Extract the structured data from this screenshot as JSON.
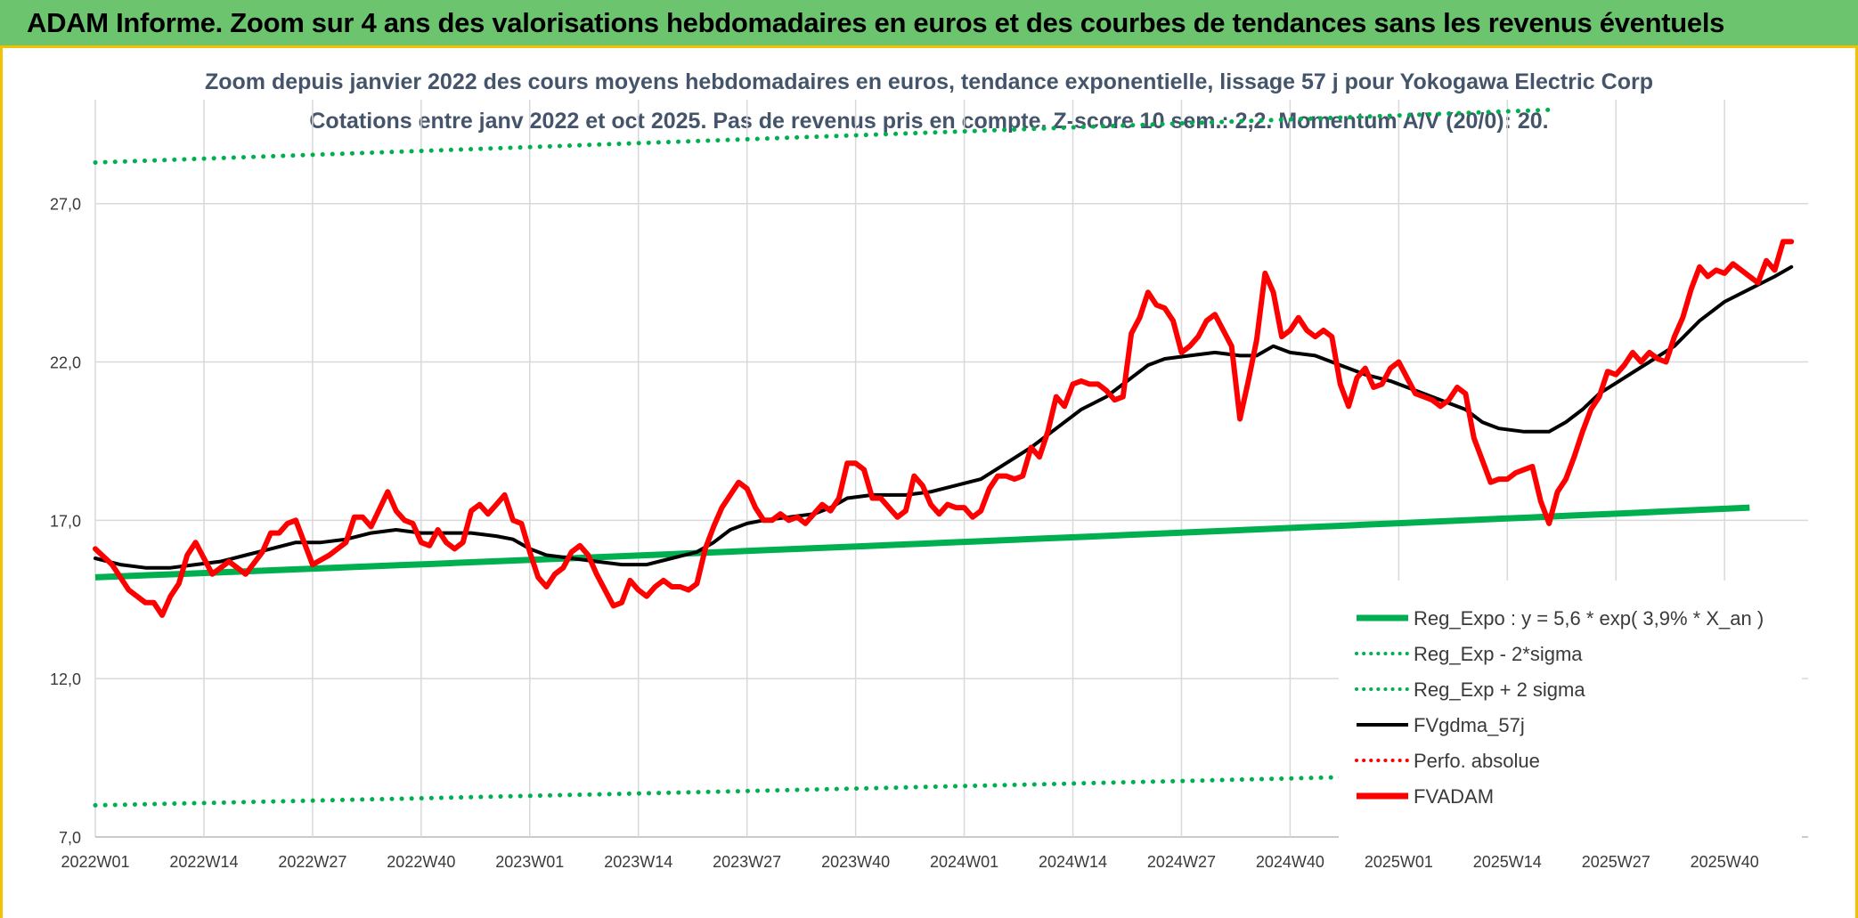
{
  "header": {
    "banner": "ADAM Informe. Zoom sur 4 ans des valorisations hebdomadaires en euros et des courbes de tendances sans les revenus éventuels"
  },
  "colors": {
    "banner_bg": "#6cc46f",
    "frame_border": "#f2c200",
    "reg_expo": "#00b050",
    "fvgdma": "#000000",
    "fvadam": "#ff0000",
    "perfo_absolue": "#ff0000",
    "grid": "#d9d9d9",
    "title": "#44546a"
  },
  "chart_data": {
    "type": "line",
    "title": "Zoom depuis janvier 2022 des cours moyens hebdomadaires en euros, tendance exponentielle, lissage 57 j pour Yokogawa Electric Corp",
    "subtitle": "Cotations entre janv 2022 et oct 2025. Pas de revenus pris en compte. Z-score 10 sem.: 2,2. Momentum A/V (20/0): 20.",
    "xlabel": "",
    "ylabel": "",
    "x_ticks": [
      "2022W01",
      "2022W14",
      "2022W27",
      "2022W40",
      "2023W01",
      "2023W14",
      "2023W27",
      "2023W40",
      "2024W01",
      "2024W14",
      "2024W27",
      "2024W40",
      "2025W01",
      "2025W14",
      "2025W27",
      "2025W40"
    ],
    "y_ticks": [
      "7,0",
      "12,0",
      "17,0",
      "22,0",
      "27,0"
    ],
    "ylim": [
      7,
      30
    ],
    "grid": true,
    "legend_position": "bottom-right",
    "legend": [
      {
        "name": "Reg_Expo : y = 5,6 * exp( 3,9% *  X_an )",
        "style": "solid-thick",
        "color": "#00b050"
      },
      {
        "name": "Reg_Exp - 2*sigma",
        "style": "dotted",
        "color": "#00b050"
      },
      {
        "name": "Reg_Exp + 2 sigma",
        "style": "dotted",
        "color": "#00b050"
      },
      {
        "name": "FVgdma_57j",
        "style": "solid",
        "color": "#000000"
      },
      {
        "name": "Perfo. absolue",
        "style": "dotted",
        "color": "#ff0000"
      },
      {
        "name": "FVADAM",
        "style": "solid-thick",
        "color": "#ff0000"
      }
    ],
    "series": [
      {
        "name": "Reg_Expo : y = 5,6 * exp( 3,9% *  X_an )",
        "x_start": "2022W01",
        "x_end": "2025W43",
        "y_start": 15.2,
        "y_end": 17.4
      },
      {
        "name": "Reg_Exp - 2*sigma",
        "x_start": "2022W01",
        "x_end": "2025W43",
        "y_start": 8.0,
        "y_end": 9.2
      },
      {
        "name": "Reg_Exp + 2 sigma",
        "x_start": "2022W01",
        "x_end": "2025W43",
        "y_start": 28.3,
        "y_end": 30.2
      },
      {
        "name": "FVADAM",
        "points": [
          [
            0,
            16.1
          ],
          [
            2,
            15.6
          ],
          [
            4,
            14.8
          ],
          [
            6,
            14.4
          ],
          [
            7,
            14.4
          ],
          [
            8,
            14.0
          ],
          [
            9,
            14.6
          ],
          [
            10,
            15.0
          ],
          [
            11,
            15.9
          ],
          [
            12,
            16.3
          ],
          [
            14,
            15.3
          ],
          [
            16,
            15.7
          ],
          [
            18,
            15.3
          ],
          [
            20,
            16.0
          ],
          [
            21,
            16.6
          ],
          [
            22,
            16.6
          ],
          [
            23,
            16.9
          ],
          [
            24,
            17.0
          ],
          [
            25,
            16.3
          ],
          [
            26,
            15.6
          ],
          [
            28,
            15.9
          ],
          [
            30,
            16.3
          ],
          [
            31,
            17.1
          ],
          [
            32,
            17.1
          ],
          [
            33,
            16.8
          ],
          [
            35,
            17.9
          ],
          [
            36,
            17.3
          ],
          [
            37,
            17.0
          ],
          [
            38,
            16.9
          ],
          [
            39,
            16.3
          ],
          [
            40,
            16.2
          ],
          [
            41,
            16.7
          ],
          [
            42,
            16.3
          ],
          [
            43,
            16.1
          ],
          [
            44,
            16.3
          ],
          [
            45,
            17.3
          ],
          [
            46,
            17.5
          ],
          [
            47,
            17.2
          ],
          [
            48,
            17.5
          ],
          [
            49,
            17.8
          ],
          [
            50,
            17.0
          ],
          [
            51,
            16.9
          ],
          [
            52,
            16.0
          ],
          [
            53,
            15.2
          ],
          [
            54,
            14.9
          ],
          [
            55,
            15.3
          ],
          [
            56,
            15.5
          ],
          [
            57,
            16.0
          ],
          [
            58,
            16.2
          ],
          [
            59,
            15.9
          ],
          [
            60,
            15.3
          ],
          [
            62,
            14.3
          ],
          [
            63,
            14.4
          ],
          [
            64,
            15.1
          ],
          [
            65,
            14.8
          ],
          [
            66,
            14.6
          ],
          [
            67,
            14.9
          ],
          [
            68,
            15.1
          ],
          [
            69,
            14.9
          ],
          [
            70,
            14.9
          ],
          [
            71,
            14.8
          ],
          [
            72,
            15.0
          ],
          [
            73,
            16.1
          ],
          [
            74,
            16.8
          ],
          [
            75,
            17.4
          ],
          [
            76,
            17.8
          ],
          [
            77,
            18.2
          ],
          [
            78,
            18.0
          ],
          [
            79,
            17.4
          ],
          [
            80,
            17.0
          ],
          [
            81,
            17.0
          ],
          [
            82,
            17.2
          ],
          [
            83,
            17.0
          ],
          [
            84,
            17.1
          ],
          [
            85,
            16.9
          ],
          [
            86,
            17.2
          ],
          [
            87,
            17.5
          ],
          [
            88,
            17.3
          ],
          [
            89,
            17.7
          ],
          [
            90,
            18.8
          ],
          [
            91,
            18.8
          ],
          [
            92,
            18.6
          ],
          [
            93,
            17.7
          ],
          [
            94,
            17.7
          ],
          [
            95,
            17.4
          ],
          [
            96,
            17.1
          ],
          [
            97,
            17.3
          ],
          [
            98,
            18.4
          ],
          [
            99,
            18.1
          ],
          [
            100,
            17.5
          ],
          [
            101,
            17.2
          ],
          [
            102,
            17.5
          ],
          [
            103,
            17.4
          ],
          [
            104,
            17.4
          ],
          [
            105,
            17.1
          ],
          [
            106,
            17.3
          ],
          [
            107,
            18.0
          ],
          [
            108,
            18.4
          ],
          [
            109,
            18.4
          ],
          [
            110,
            18.3
          ],
          [
            111,
            18.4
          ],
          [
            112,
            19.3
          ],
          [
            113,
            19.0
          ],
          [
            114,
            19.8
          ],
          [
            115,
            20.9
          ],
          [
            116,
            20.6
          ],
          [
            117,
            21.3
          ],
          [
            118,
            21.4
          ],
          [
            119,
            21.3
          ],
          [
            120,
            21.3
          ],
          [
            121,
            21.1
          ],
          [
            122,
            20.8
          ],
          [
            123,
            20.9
          ],
          [
            124,
            22.9
          ],
          [
            125,
            23.4
          ],
          [
            126,
            24.2
          ],
          [
            127,
            23.8
          ],
          [
            128,
            23.7
          ],
          [
            129,
            23.3
          ],
          [
            130,
            22.3
          ],
          [
            131,
            22.5
          ],
          [
            132,
            22.8
          ],
          [
            133,
            23.3
          ],
          [
            134,
            23.5
          ],
          [
            135,
            23.0
          ],
          [
            136,
            22.5
          ],
          [
            137,
            20.2
          ],
          [
            138,
            21.4
          ],
          [
            139,
            22.7
          ],
          [
            140,
            24.8
          ],
          [
            141,
            24.2
          ],
          [
            142,
            22.8
          ],
          [
            143,
            23.0
          ],
          [
            144,
            23.4
          ],
          [
            145,
            23.0
          ],
          [
            146,
            22.8
          ],
          [
            147,
            23.0
          ],
          [
            148,
            22.8
          ],
          [
            149,
            21.3
          ],
          [
            150,
            20.6
          ],
          [
            151,
            21.5
          ],
          [
            152,
            21.8
          ],
          [
            153,
            21.2
          ],
          [
            154,
            21.3
          ],
          [
            155,
            21.8
          ],
          [
            156,
            22.0
          ],
          [
            157,
            21.5
          ],
          [
            158,
            21.0
          ],
          [
            159,
            20.9
          ],
          [
            160,
            20.8
          ],
          [
            161,
            20.6
          ],
          [
            162,
            20.8
          ],
          [
            163,
            21.2
          ],
          [
            164,
            21.0
          ],
          [
            165,
            19.6
          ],
          [
            166,
            18.9
          ],
          [
            167,
            18.2
          ],
          [
            168,
            18.3
          ],
          [
            169,
            18.3
          ],
          [
            170,
            18.5
          ],
          [
            171,
            18.6
          ],
          [
            172,
            18.7
          ],
          [
            173,
            17.6
          ],
          [
            174,
            16.9
          ],
          [
            175,
            17.9
          ],
          [
            176,
            18.3
          ],
          [
            177,
            19.0
          ],
          [
            178,
            19.8
          ],
          [
            179,
            20.5
          ],
          [
            180,
            20.9
          ],
          [
            181,
            21.7
          ],
          [
            182,
            21.6
          ],
          [
            183,
            21.9
          ],
          [
            184,
            22.3
          ],
          [
            185,
            22.0
          ],
          [
            186,
            22.3
          ],
          [
            187,
            22.1
          ],
          [
            188,
            22.0
          ],
          [
            189,
            22.8
          ],
          [
            190,
            23.4
          ],
          [
            191,
            24.3
          ],
          [
            192,
            25.0
          ],
          [
            193,
            24.7
          ],
          [
            194,
            24.9
          ],
          [
            195,
            24.8
          ],
          [
            196,
            25.1
          ],
          [
            197,
            24.9
          ],
          [
            198,
            24.7
          ],
          [
            199,
            24.5
          ],
          [
            200,
            25.2
          ],
          [
            201,
            24.9
          ],
          [
            202,
            25.8
          ],
          [
            203,
            25.8
          ]
        ]
      },
      {
        "name": "FVgdma_57j",
        "points": [
          [
            0,
            15.8
          ],
          [
            3,
            15.6
          ],
          [
            6,
            15.5
          ],
          [
            9,
            15.5
          ],
          [
            12,
            15.6
          ],
          [
            15,
            15.7
          ],
          [
            18,
            15.9
          ],
          [
            21,
            16.1
          ],
          [
            24,
            16.3
          ],
          [
            27,
            16.3
          ],
          [
            30,
            16.4
          ],
          [
            33,
            16.6
          ],
          [
            36,
            16.7
          ],
          [
            39,
            16.6
          ],
          [
            42,
            16.6
          ],
          [
            45,
            16.6
          ],
          [
            48,
            16.5
          ],
          [
            50,
            16.4
          ],
          [
            52,
            16.1
          ],
          [
            54,
            15.9
          ],
          [
            57,
            15.8
          ],
          [
            60,
            15.7
          ],
          [
            63,
            15.6
          ],
          [
            66,
            15.6
          ],
          [
            69,
            15.8
          ],
          [
            72,
            16.0
          ],
          [
            74,
            16.3
          ],
          [
            76,
            16.7
          ],
          [
            78,
            16.9
          ],
          [
            80,
            17.0
          ],
          [
            83,
            17.1
          ],
          [
            86,
            17.2
          ],
          [
            88,
            17.4
          ],
          [
            90,
            17.7
          ],
          [
            93,
            17.8
          ],
          [
            97,
            17.8
          ],
          [
            100,
            17.9
          ],
          [
            103,
            18.1
          ],
          [
            106,
            18.3
          ],
          [
            109,
            18.8
          ],
          [
            112,
            19.3
          ],
          [
            115,
            19.9
          ],
          [
            118,
            20.5
          ],
          [
            121,
            20.9
          ],
          [
            124,
            21.5
          ],
          [
            126,
            21.9
          ],
          [
            128,
            22.1
          ],
          [
            131,
            22.2
          ],
          [
            134,
            22.3
          ],
          [
            137,
            22.2
          ],
          [
            139,
            22.2
          ],
          [
            141,
            22.5
          ],
          [
            143,
            22.3
          ],
          [
            146,
            22.2
          ],
          [
            149,
            21.9
          ],
          [
            152,
            21.6
          ],
          [
            155,
            21.4
          ],
          [
            158,
            21.1
          ],
          [
            161,
            20.8
          ],
          [
            164,
            20.5
          ],
          [
            166,
            20.1
          ],
          [
            168,
            19.9
          ],
          [
            171,
            19.8
          ],
          [
            174,
            19.8
          ],
          [
            176,
            20.1
          ],
          [
            178,
            20.5
          ],
          [
            180,
            21.0
          ],
          [
            183,
            21.5
          ],
          [
            186,
            22.0
          ],
          [
            189,
            22.5
          ],
          [
            192,
            23.3
          ],
          [
            195,
            23.9
          ],
          [
            198,
            24.3
          ],
          [
            201,
            24.7
          ],
          [
            203,
            25.0
          ]
        ]
      }
    ]
  }
}
